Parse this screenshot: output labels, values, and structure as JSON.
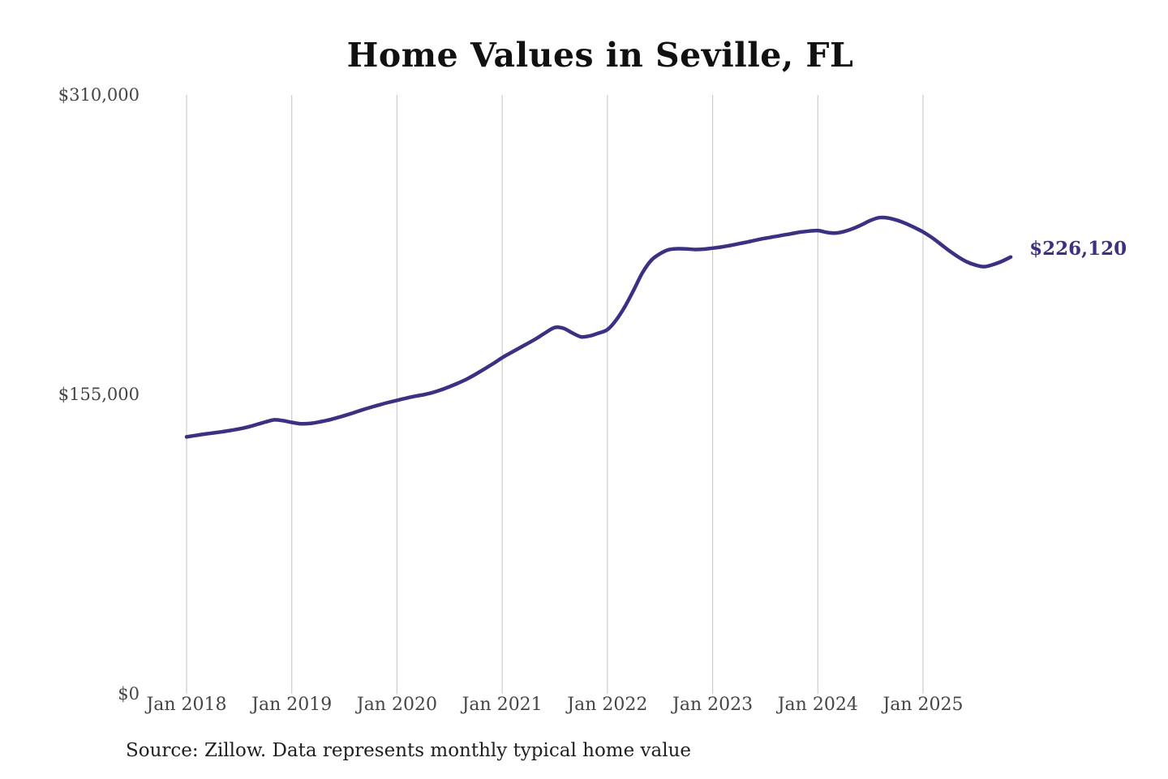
{
  "title": "Home Values in Seville, FL",
  "source_note": "Source: Zillow. Data represents monthly typical home value",
  "end_label": "$226,120",
  "colors": {
    "line": "#3a3183",
    "grid": "#cccccc",
    "tick_text": "#454545",
    "title_text": "#111111",
    "source_text": "#1f1f1f",
    "background": "#ffffff"
  },
  "chart_data": {
    "type": "line",
    "title": "Home Values in Seville, FL",
    "xlabel": "",
    "ylabel": "",
    "x_start": "Jan 2018",
    "x_interval": "month",
    "x_end": "Nov 2025",
    "x_tick_labels": [
      "Jan 2018",
      "Jan 2019",
      "Jan 2020",
      "Jan 2021",
      "Jan 2022",
      "Jan 2023",
      "Jan 2024",
      "Jan 2025"
    ],
    "y_ticks": [
      0,
      155000,
      310000
    ],
    "y_tick_labels": [
      "$0",
      "$155,000",
      "$310,000"
    ],
    "ylim": [
      0,
      310000
    ],
    "grid": "vertical",
    "legend": "none",
    "series": [
      {
        "name": "Typical home value",
        "values": [
          133000,
          133700,
          134400,
          135000,
          135600,
          136300,
          137100,
          138100,
          139400,
          140700,
          141800,
          141400,
          140500,
          139800,
          139900,
          140600,
          141500,
          142700,
          144000,
          145400,
          146900,
          148300,
          149600,
          150800,
          151900,
          153000,
          154000,
          154800,
          155900,
          157300,
          159000,
          160900,
          163000,
          165500,
          168200,
          171000,
          174000,
          176600,
          179100,
          181600,
          184200,
          187100,
          189600,
          189200,
          186800,
          184800,
          185300,
          186700,
          188500,
          193500,
          200500,
          209000,
          218000,
          224400,
          227800,
          229900,
          230400,
          230300,
          230000,
          230200,
          230700,
          231300,
          232100,
          233000,
          233900,
          234900,
          235800,
          236600,
          237400,
          238200,
          239000,
          239500,
          239800,
          238900,
          238500,
          239300,
          240800,
          242800,
          245000,
          246500,
          246300,
          245200,
          243500,
          241400,
          239100,
          236200,
          232800,
          229300,
          226200,
          223600,
          221900,
          221100,
          222200,
          223900,
          226120
        ],
        "last_value": 226120,
        "last_value_label": "$226,120"
      }
    ]
  }
}
